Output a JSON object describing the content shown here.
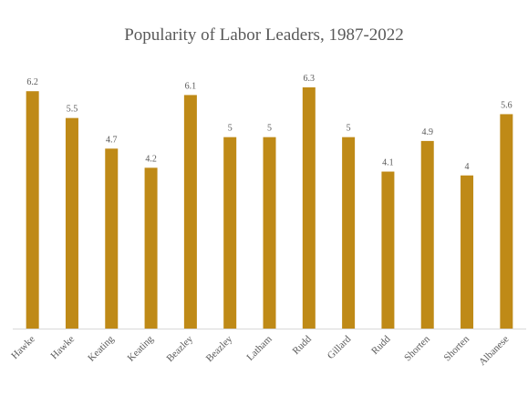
{
  "chart_data": {
    "type": "bar",
    "title": "Popularity of Labor Leaders, 1987-2022",
    "xlabel": "",
    "ylabel": "",
    "categories": [
      "Hawke",
      "Hawke",
      "Keating",
      "Keating",
      "Beazley",
      "Beazley",
      "Latham",
      "Rudd",
      "Gillard",
      "Rudd",
      "Shorten",
      "Shorten",
      "Albanese"
    ],
    "values": [
      6.2,
      5.5,
      4.7,
      4.2,
      6.1,
      5,
      5,
      6.3,
      5,
      4.1,
      4.9,
      4,
      5.6
    ],
    "value_labels": [
      "6.2",
      "5.5",
      "4.7",
      "4.2",
      "6.1",
      "5",
      "5",
      "6.3",
      "5",
      "4.1",
      "4.9",
      "4",
      "5.6"
    ],
    "ylim": [
      0,
      6.3
    ],
    "grid": false,
    "legend": "none",
    "bar_color": "#BF8A17",
    "axis_color": "#D9D9D9",
    "label_color": "#595959"
  }
}
